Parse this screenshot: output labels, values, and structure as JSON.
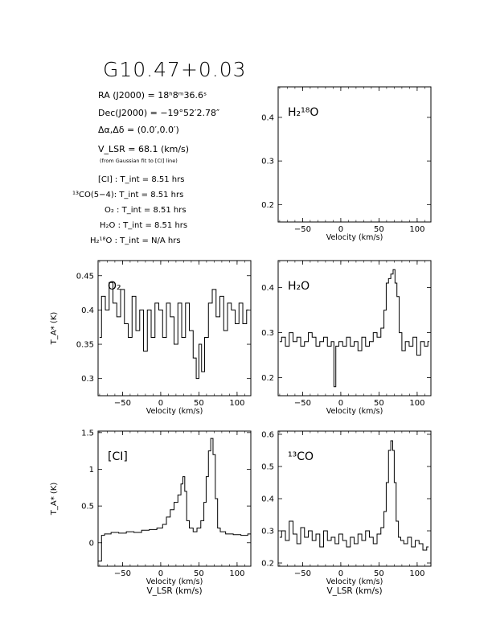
{
  "header": {
    "title": "G10.47+0.03",
    "ra": "RA (J2000) =  18ʰ8ᵐ36.6ˢ",
    "dec": "Dec(J2000) = −19°52′2.78″",
    "offset": "Δα,Δδ = (0.0′,0.0′)",
    "vlsr": "V_LSR  = 68.1 (km/s)",
    "vlsr_note": "(from Gaussian fit to [CI] line)",
    "tint": [
      "[CI] : T_int = 8.51 hrs",
      "¹³CO(5−4): T_int = 8.51 hrs",
      "O₂ : T_int = 8.51 hrs",
      "H₂O : T_int = 8.51 hrs",
      "H₂¹⁸O : T_int = N/A hrs"
    ]
  },
  "chart_data": [
    {
      "id": "h218o",
      "type": "line",
      "label": "H₂¹⁸O",
      "xlabel": "Velocity (km/s)",
      "ylabel": "",
      "xlim": [
        -82,
        118
      ],
      "ylim": [
        0.16,
        0.47
      ],
      "xticks": [
        -50,
        0,
        50,
        100
      ],
      "yticks": [
        0.2,
        0.3,
        0.4
      ],
      "x": [],
      "y": []
    },
    {
      "id": "o2",
      "type": "line",
      "label": "O₂",
      "xlabel": "Velocity (km/s)",
      "ylabel": "T_A* (K)",
      "xlim": [
        -82,
        118
      ],
      "ylim": [
        0.275,
        0.472
      ],
      "xticks": [
        -50,
        0,
        50,
        100
      ],
      "yticks": [
        0.3,
        0.35,
        0.4,
        0.45
      ],
      "x": [
        -80,
        -75,
        -70,
        -65,
        -60,
        -55,
        -50,
        -45,
        -40,
        -35,
        -30,
        -25,
        -20,
        -15,
        -10,
        -5,
        0,
        5,
        10,
        15,
        20,
        25,
        30,
        35,
        40,
        45,
        48,
        52,
        55,
        60,
        65,
        70,
        75,
        80,
        85,
        90,
        95,
        100,
        105,
        110,
        115
      ],
      "y": [
        0.36,
        0.42,
        0.4,
        0.44,
        0.41,
        0.39,
        0.43,
        0.38,
        0.36,
        0.42,
        0.37,
        0.4,
        0.34,
        0.4,
        0.36,
        0.41,
        0.4,
        0.36,
        0.41,
        0.39,
        0.35,
        0.41,
        0.36,
        0.41,
        0.37,
        0.33,
        0.3,
        0.35,
        0.31,
        0.36,
        0.41,
        0.43,
        0.39,
        0.42,
        0.37,
        0.41,
        0.4,
        0.38,
        0.41,
        0.38,
        0.4
      ]
    },
    {
      "id": "h2o",
      "type": "line",
      "label": "H₂O",
      "xlabel": "Velocity (km/s)",
      "ylabel": "",
      "xlim": [
        -82,
        118
      ],
      "ylim": [
        0.16,
        0.46
      ],
      "xticks": [
        -50,
        0,
        50,
        100
      ],
      "yticks": [
        0.2,
        0.3,
        0.4
      ],
      "x": [
        -80,
        -75,
        -70,
        -65,
        -60,
        -55,
        -50,
        -45,
        -40,
        -35,
        -30,
        -25,
        -20,
        -15,
        -10,
        -8,
        -5,
        0,
        5,
        10,
        15,
        20,
        25,
        30,
        35,
        40,
        45,
        50,
        55,
        58,
        61,
        64,
        67,
        70,
        72,
        75,
        78,
        82,
        87,
        92,
        97,
        102,
        107,
        112,
        116
      ],
      "y": [
        0.28,
        0.29,
        0.27,
        0.3,
        0.28,
        0.29,
        0.27,
        0.28,
        0.3,
        0.29,
        0.27,
        0.28,
        0.29,
        0.27,
        0.28,
        0.18,
        0.27,
        0.28,
        0.27,
        0.29,
        0.27,
        0.28,
        0.26,
        0.29,
        0.27,
        0.28,
        0.3,
        0.29,
        0.31,
        0.35,
        0.41,
        0.42,
        0.43,
        0.44,
        0.41,
        0.38,
        0.3,
        0.26,
        0.28,
        0.27,
        0.29,
        0.25,
        0.28,
        0.27,
        0.28
      ]
    },
    {
      "id": "ci",
      "type": "line",
      "label": "[CI]",
      "xlabel": "Velocity (km/s)",
      "ylabel": "T_A* (K)",
      "xlim": [
        -82,
        118
      ],
      "ylim": [
        -0.32,
        1.52
      ],
      "xticks": [
        -50,
        0,
        50,
        100
      ],
      "yticks": [
        0,
        0.5,
        1,
        1.5
      ],
      "x": [
        -82,
        -78,
        -77,
        -70,
        -60,
        -50,
        -40,
        -30,
        -20,
        -10,
        0,
        5,
        10,
        15,
        20,
        25,
        28,
        30,
        33,
        35,
        40,
        45,
        50,
        55,
        58,
        61,
        64,
        67,
        70,
        73,
        76,
        80,
        90,
        100,
        110,
        118
      ],
      "y": [
        -0.25,
        -0.25,
        0.1,
        0.12,
        0.14,
        0.13,
        0.15,
        0.14,
        0.17,
        0.18,
        0.2,
        0.25,
        0.35,
        0.45,
        0.55,
        0.65,
        0.8,
        0.9,
        0.7,
        0.3,
        0.2,
        0.15,
        0.2,
        0.3,
        0.55,
        0.9,
        1.25,
        1.42,
        1.2,
        0.6,
        0.2,
        0.15,
        0.12,
        0.11,
        0.1,
        0.12
      ]
    },
    {
      "id": "13co",
      "type": "line",
      "label": "¹³CO",
      "xlabel": "Velocity (km/s)",
      "ylabel": "",
      "xlim": [
        -82,
        118
      ],
      "ylim": [
        0.19,
        0.61
      ],
      "xticks": [
        -50,
        0,
        50,
        100
      ],
      "yticks": [
        0.2,
        0.3,
        0.4,
        0.5,
        0.6
      ],
      "x": [
        -80,
        -75,
        -70,
        -65,
        -60,
        -55,
        -50,
        -45,
        -40,
        -35,
        -30,
        -25,
        -20,
        -15,
        -10,
        -5,
        0,
        5,
        10,
        15,
        20,
        25,
        30,
        35,
        40,
        45,
        50,
        55,
        58,
        61,
        64,
        67,
        69,
        71,
        74,
        77,
        80,
        85,
        90,
        95,
        100,
        105,
        110,
        115
      ],
      "y": [
        0.28,
        0.3,
        0.27,
        0.33,
        0.29,
        0.26,
        0.31,
        0.28,
        0.3,
        0.27,
        0.29,
        0.25,
        0.3,
        0.27,
        0.28,
        0.26,
        0.29,
        0.27,
        0.25,
        0.28,
        0.26,
        0.29,
        0.27,
        0.3,
        0.28,
        0.26,
        0.29,
        0.31,
        0.36,
        0.45,
        0.55,
        0.58,
        0.55,
        0.45,
        0.33,
        0.28,
        0.27,
        0.26,
        0.28,
        0.25,
        0.27,
        0.26,
        0.24,
        0.25
      ]
    }
  ],
  "bottom_xlabel": "V_LSR (km/s)"
}
